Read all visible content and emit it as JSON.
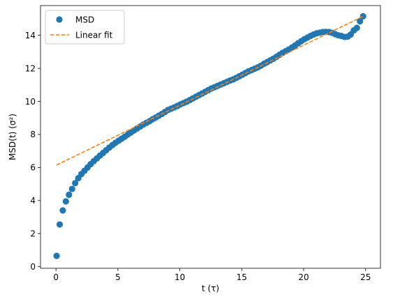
{
  "chart_data": {
    "type": "scatter",
    "xlabel": "t (τ)",
    "ylabel": "MSD(t) (σ²)",
    "xlim": [
      -1.25,
      26.2
    ],
    "ylim": [
      -0.1,
      15.8
    ],
    "xticks": [
      0,
      5,
      10,
      15,
      20,
      25
    ],
    "yticks": [
      0,
      2,
      4,
      6,
      8,
      10,
      12,
      14
    ],
    "grid": false,
    "legend_position": "top-left",
    "series": [
      {
        "name": "MSD",
        "kind": "markers",
        "color": "#1f77b4",
        "points": [
          [
            0.05,
            0.65
          ],
          [
            0.3,
            2.55
          ],
          [
            0.55,
            3.4
          ],
          [
            0.8,
            3.95
          ],
          [
            1.05,
            4.35
          ],
          [
            1.3,
            4.7
          ],
          [
            1.55,
            5.05
          ],
          [
            1.8,
            5.35
          ],
          [
            2.05,
            5.6
          ],
          [
            2.3,
            5.8
          ],
          [
            2.55,
            6.0
          ],
          [
            2.8,
            6.2
          ],
          [
            3.05,
            6.38
          ],
          [
            3.3,
            6.55
          ],
          [
            3.55,
            6.72
          ],
          [
            3.8,
            6.88
          ],
          [
            4.05,
            7.04
          ],
          [
            4.3,
            7.2
          ],
          [
            4.55,
            7.35
          ],
          [
            4.8,
            7.49
          ],
          [
            5.05,
            7.62
          ],
          [
            5.3,
            7.74
          ],
          [
            5.55,
            7.86
          ],
          [
            5.8,
            8.0
          ],
          [
            6.05,
            8.12
          ],
          [
            6.3,
            8.24
          ],
          [
            6.55,
            8.36
          ],
          [
            6.8,
            8.48
          ],
          [
            7.05,
            8.6
          ],
          [
            7.3,
            8.7
          ],
          [
            7.55,
            8.8
          ],
          [
            7.8,
            8.92
          ],
          [
            8.05,
            9.02
          ],
          [
            8.3,
            9.13
          ],
          [
            8.55,
            9.24
          ],
          [
            8.8,
            9.36
          ],
          [
            9.05,
            9.48
          ],
          [
            9.3,
            9.56
          ],
          [
            9.55,
            9.64
          ],
          [
            9.8,
            9.72
          ],
          [
            10.05,
            9.82
          ],
          [
            10.3,
            9.9
          ],
          [
            10.55,
            9.98
          ],
          [
            10.8,
            10.08
          ],
          [
            11.05,
            10.18
          ],
          [
            11.3,
            10.28
          ],
          [
            11.55,
            10.38
          ],
          [
            11.8,
            10.48
          ],
          [
            12.05,
            10.58
          ],
          [
            12.3,
            10.68
          ],
          [
            12.55,
            10.78
          ],
          [
            12.8,
            10.86
          ],
          [
            13.05,
            10.94
          ],
          [
            13.3,
            11.02
          ],
          [
            13.55,
            11.1
          ],
          [
            13.8,
            11.18
          ],
          [
            14.05,
            11.26
          ],
          [
            14.3,
            11.33
          ],
          [
            14.55,
            11.42
          ],
          [
            14.8,
            11.52
          ],
          [
            15.05,
            11.62
          ],
          [
            15.3,
            11.72
          ],
          [
            15.55,
            11.82
          ],
          [
            15.8,
            11.9
          ],
          [
            16.05,
            11.98
          ],
          [
            16.3,
            12.06
          ],
          [
            16.55,
            12.16
          ],
          [
            16.8,
            12.28
          ],
          [
            17.05,
            12.38
          ],
          [
            17.3,
            12.48
          ],
          [
            17.55,
            12.58
          ],
          [
            17.8,
            12.7
          ],
          [
            18.05,
            12.82
          ],
          [
            18.3,
            12.94
          ],
          [
            18.55,
            13.04
          ],
          [
            18.8,
            13.14
          ],
          [
            19.05,
            13.26
          ],
          [
            19.3,
            13.38
          ],
          [
            19.55,
            13.52
          ],
          [
            19.8,
            13.64
          ],
          [
            20.05,
            13.76
          ],
          [
            20.3,
            13.86
          ],
          [
            20.55,
            13.96
          ],
          [
            20.8,
            14.05
          ],
          [
            21.05,
            14.12
          ],
          [
            21.3,
            14.16
          ],
          [
            21.55,
            14.2
          ],
          [
            21.8,
            14.21
          ],
          [
            22.05,
            14.2
          ],
          [
            22.3,
            14.15
          ],
          [
            22.55,
            14.07
          ],
          [
            22.8,
            14.0
          ],
          [
            23.05,
            13.96
          ],
          [
            23.3,
            13.9
          ],
          [
            23.55,
            13.92
          ],
          [
            23.8,
            14.05
          ],
          [
            24.05,
            14.3
          ],
          [
            24.3,
            14.45
          ],
          [
            24.55,
            14.85
          ],
          [
            24.8,
            15.15
          ]
        ]
      },
      {
        "name": "Linear fit",
        "kind": "dashed-line",
        "color": "#ff7f0e",
        "points": [
          [
            0.05,
            6.15
          ],
          [
            24.8,
            15.15
          ]
        ]
      }
    ]
  }
}
